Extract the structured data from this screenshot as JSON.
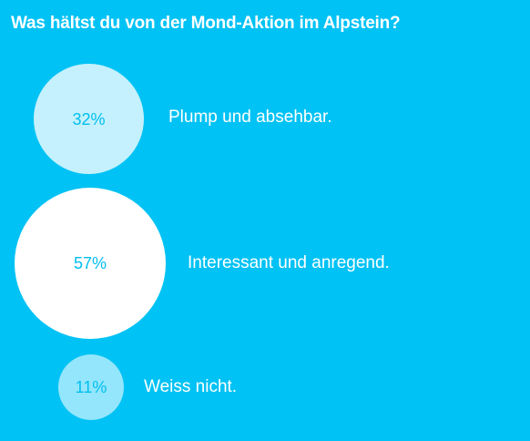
{
  "poll": {
    "question": "Was hältst du von der Mond-Aktion im Alpstein?",
    "options": [
      {
        "percent_label": "32%",
        "percent": 32,
        "text": "Plump und absehbar.",
        "circle_color": "#c4f1fd"
      },
      {
        "percent_label": "57%",
        "percent": 57,
        "text": "Interessant und anregend.",
        "circle_color": "#ffffff"
      },
      {
        "percent_label": "11%",
        "percent": 11,
        "text": "Weiss nicht.",
        "circle_color": "#94e6fc"
      }
    ]
  },
  "colors": {
    "background": "#00c2f4",
    "percent_text": "#00bfef",
    "label_text": "#ffffff"
  }
}
